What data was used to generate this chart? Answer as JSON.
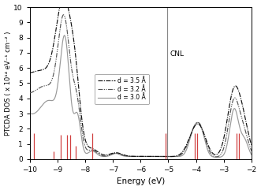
{
  "xlabel": "Energy (eV)",
  "ylabel": "PTCDA DOS ( x 10¹⁴ eV⁻¹ cm⁻² )",
  "xlim": [
    -10,
    -2
  ],
  "ylim": [
    0,
    10
  ],
  "yticks": [
    0,
    1,
    2,
    3,
    4,
    5,
    6,
    7,
    8,
    9,
    10
  ],
  "xticks": [
    -10,
    -9,
    -8,
    -7,
    -6,
    -5,
    -4,
    -3,
    -2
  ],
  "cnl_x": -5.05,
  "cnl_label": "CNL",
  "legend_labels": [
    "d = 3.5 Å",
    "d = 3.2 Å",
    "d = 3.0 Å"
  ],
  "mol_levels": [
    -9.85,
    -9.15,
    -8.9,
    -8.65,
    -8.55,
    -8.35,
    -7.75,
    -5.1,
    -4.05,
    -3.95,
    -2.55,
    -2.45
  ],
  "mol_heights": [
    1.7,
    0.5,
    1.6,
    1.6,
    1.6,
    0.85,
    1.7,
    1.7,
    1.7,
    1.7,
    1.7,
    1.7
  ],
  "bg_color": "#ffffff",
  "line_color_d35": "#111111",
  "line_color_d32": "#555555",
  "line_color_d30": "#999999"
}
